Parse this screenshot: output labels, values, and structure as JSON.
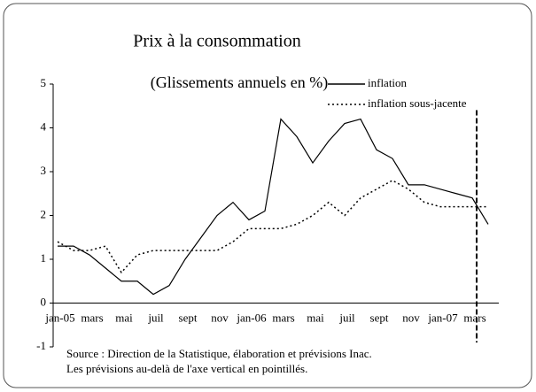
{
  "chart_data": {
    "type": "line",
    "title": "Prix à la consommation",
    "subtitle": "(Glissements annuels en %)",
    "categories": [
      "jan-05",
      null,
      "mars",
      null,
      "mai",
      null,
      "juil",
      null,
      "sept",
      null,
      "nov",
      null,
      "jan-06",
      null,
      "mars",
      null,
      "mai",
      null,
      "juil",
      null,
      "sept",
      null,
      "nov",
      null,
      "jan-07",
      null,
      "mars",
      null
    ],
    "series": [
      {
        "name": "inflation",
        "color": "#000000",
        "style": "solid",
        "values": [
          1.3,
          1.3,
          1.1,
          0.8,
          0.5,
          0.5,
          0.2,
          0.4,
          1.0,
          1.5,
          2.0,
          2.3,
          1.9,
          2.1,
          4.2,
          3.8,
          3.2,
          3.7,
          4.1,
          4.2,
          3.5,
          3.3,
          2.7,
          2.7,
          2.6,
          2.5,
          2.4,
          1.8
        ]
      },
      {
        "name": "inflation sous-jacente",
        "color": "#000000",
        "style": "dotted",
        "values": [
          1.4,
          1.2,
          1.2,
          1.3,
          0.7,
          1.1,
          1.2,
          1.2,
          1.2,
          1.2,
          1.2,
          1.4,
          1.7,
          1.7,
          1.7,
          1.8,
          2.0,
          2.3,
          2.0,
          2.4,
          2.6,
          2.8,
          2.6,
          2.3,
          2.2,
          2.2,
          2.2,
          2.2
        ]
      }
    ],
    "ylim": [
      -1,
      5
    ],
    "yticks": [
      -1,
      0,
      1,
      2,
      3,
      4,
      5
    ],
    "grid": false,
    "legend": "top-right",
    "forecast_from_index": 26,
    "source": [
      "Source : Direction de la Statistique, élaboration et prévisions Inac.",
      "Les prévisions au-delà de l'axe vertical en pointillés."
    ]
  }
}
